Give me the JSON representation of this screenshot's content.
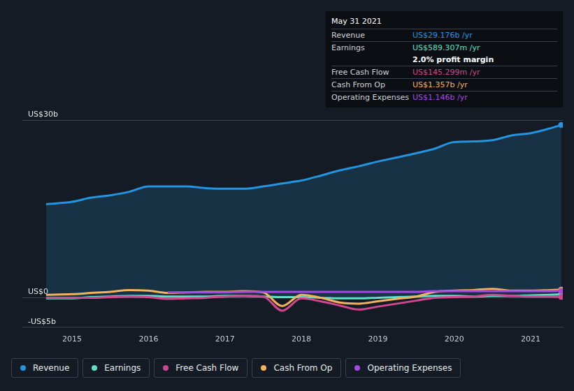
{
  "chart_data": {
    "type": "line",
    "x": [
      2014.66,
      2015,
      2015.25,
      2015.5,
      2015.75,
      2016,
      2016.25,
      2016.5,
      2016.75,
      2017,
      2017.25,
      2017.5,
      2017.75,
      2018,
      2018.25,
      2018.5,
      2018.75,
      2019,
      2019.25,
      2019.5,
      2019.75,
      2020,
      2020.25,
      2020.5,
      2020.75,
      2021,
      2021.25,
      2021.4
    ],
    "series": [
      {
        "name": "Revenue",
        "color": "#2394df",
        "values": [
          15.8,
          16.2,
          16.9,
          17.3,
          17.9,
          18.8,
          18.8,
          18.8,
          18.5,
          18.4,
          18.4,
          18.8,
          19.3,
          19.8,
          20.6,
          21.5,
          22.2,
          23.0,
          23.7,
          24.4,
          25.2,
          26.3,
          26.4,
          26.6,
          27.4,
          27.8,
          28.6,
          29.176
        ]
      },
      {
        "name": "Earnings",
        "color": "#5fe0c6",
        "values": [
          -0.1,
          -0.1,
          0.1,
          0.2,
          0.3,
          0.3,
          0.2,
          0.2,
          0.2,
          0.3,
          0.3,
          0.2,
          0.1,
          0.1,
          0.0,
          -0.1,
          -0.1,
          0.0,
          0.1,
          0.2,
          0.3,
          0.3,
          0.2,
          0.3,
          0.3,
          0.4,
          0.5,
          0.589
        ]
      },
      {
        "name": "Free Cash Flow",
        "color": "#d1468e",
        "values": [
          0.0,
          0.0,
          0.0,
          0.1,
          0.2,
          0.1,
          -0.2,
          -0.1,
          0.0,
          0.2,
          0.3,
          0.2,
          -2.2,
          -0.1,
          -0.6,
          -1.3,
          -2.0,
          -1.5,
          -1.0,
          -0.5,
          0.0,
          0.1,
          0.2,
          0.5,
          0.3,
          0.2,
          0.2,
          0.145
        ]
      },
      {
        "name": "Cash From Op",
        "color": "#f2b35d",
        "values": [
          0.5,
          0.6,
          0.8,
          1.0,
          1.3,
          1.2,
          0.8,
          0.9,
          1.0,
          1.0,
          1.1,
          0.9,
          -1.4,
          0.5,
          0.0,
          -0.8,
          -1.0,
          -0.6,
          -0.2,
          0.2,
          1.0,
          1.2,
          1.3,
          1.5,
          1.2,
          1.2,
          1.3,
          1.357
        ]
      },
      {
        "name": "Operating Expenses",
        "color": "#a449e3",
        "values": [
          null,
          null,
          null,
          null,
          null,
          null,
          0.9,
          0.9,
          0.9,
          0.9,
          1.0,
          1.0,
          1.0,
          1.0,
          1.0,
          1.0,
          1.0,
          1.0,
          1.0,
          1.0,
          1.1,
          1.1,
          1.1,
          1.1,
          1.1,
          1.1,
          1.1,
          1.146
        ]
      }
    ],
    "xlim": [
      2014.35,
      2021.42
    ],
    "xticks": [
      2015,
      2016,
      2017,
      2018,
      2019,
      2020,
      2021
    ],
    "ylim": [
      -5,
      30
    ],
    "yticks": [
      {
        "value": -5,
        "label": "-US$5b"
      },
      {
        "value": 0,
        "label": "US$0"
      },
      {
        "value": 30,
        "label": "US$30b"
      }
    ],
    "grid": true,
    "legend": "bottom",
    "info_box": {
      "title": "May 31 2021",
      "rows": [
        {
          "label": "Revenue",
          "value": "US$29.176b /yr"
        },
        {
          "label": "Earnings",
          "value": "US$589.307m /yr",
          "note": "2.0% profit margin"
        },
        {
          "label": "Free Cash Flow",
          "value": "US$145.299m /yr"
        },
        {
          "label": "Cash From Op",
          "value": "US$1.357b /yr"
        },
        {
          "label": "Operating Expenses",
          "value": "US$1.146b /yr"
        }
      ]
    }
  }
}
